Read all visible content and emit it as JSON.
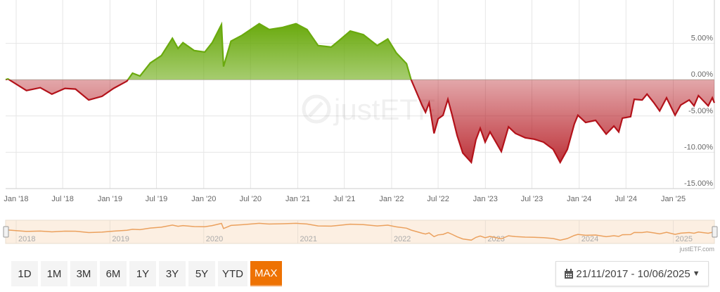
{
  "chart_data": {
    "type": "area",
    "start_date": "2017-11-21",
    "end_date": "2025-06-10",
    "ylim": [
      -15,
      10
    ],
    "y_ticks": [
      "5.00%",
      "0.00%",
      "-5.00%",
      "-10.00%",
      "-15.00%"
    ],
    "y_tick_values": [
      5,
      0,
      -5,
      -10,
      -15
    ],
    "x_ticks": [
      {
        "label": "Jan '18",
        "date": "2018-01-01"
      },
      {
        "label": "Jul '18",
        "date": "2018-07-01"
      },
      {
        "label": "Jan '19",
        "date": "2019-01-01"
      },
      {
        "label": "Jul '19",
        "date": "2019-07-01"
      },
      {
        "label": "Jan '20",
        "date": "2020-01-01"
      },
      {
        "label": "Jul '20",
        "date": "2020-07-01"
      },
      {
        "label": "Jan '21",
        "date": "2021-01-01"
      },
      {
        "label": "Jul '21",
        "date": "2021-07-01"
      },
      {
        "label": "Jan '22",
        "date": "2022-01-01"
      },
      {
        "label": "Jul '22",
        "date": "2022-07-01"
      },
      {
        "label": "Jan '23",
        "date": "2023-01-01"
      },
      {
        "label": "Jul '23",
        "date": "2023-07-01"
      },
      {
        "label": "Jan '24",
        "date": "2024-01-01"
      },
      {
        "label": "Jul '24",
        "date": "2024-07-01"
      },
      {
        "label": "Jan '25",
        "date": "2025-01-01"
      }
    ],
    "grid": true,
    "positive_color": "#6aaa0e",
    "negative_color": "#b3121a",
    "series": [
      {
        "points": [
          [
            "2017-11-21",
            0
          ],
          [
            "2017-11-30",
            0.1
          ],
          [
            "2018-02-10",
            -1.5
          ],
          [
            "2018-04-05",
            -1.1
          ],
          [
            "2018-05-20",
            -2.0
          ],
          [
            "2018-07-10",
            -1.2
          ],
          [
            "2018-08-20",
            -1.3
          ],
          [
            "2018-10-10",
            -2.8
          ],
          [
            "2018-12-01",
            -2.3
          ],
          [
            "2019-01-15",
            -1.2
          ],
          [
            "2019-03-08",
            -0.2
          ],
          [
            "2019-03-30",
            0.9
          ],
          [
            "2019-04-28",
            0.5
          ],
          [
            "2019-06-07",
            2.3
          ],
          [
            "2019-07-20",
            3.3
          ],
          [
            "2019-09-01",
            5.7
          ],
          [
            "2019-09-23",
            4.3
          ],
          [
            "2019-10-12",
            5.1
          ],
          [
            "2019-11-25",
            4.0
          ],
          [
            "2020-01-05",
            3.8
          ],
          [
            "2020-02-03",
            5.1
          ],
          [
            "2020-03-10",
            7.6
          ],
          [
            "2020-03-18",
            1.8
          ],
          [
            "2020-04-16",
            5.3
          ],
          [
            "2020-05-29",
            6.1
          ],
          [
            "2020-08-04",
            7.7
          ],
          [
            "2020-09-12",
            6.9
          ],
          [
            "2020-11-03",
            7.2
          ],
          [
            "2020-12-25",
            7.7
          ],
          [
            "2021-02-06",
            6.9
          ],
          [
            "2021-03-21",
            4.7
          ],
          [
            "2021-05-11",
            4.5
          ],
          [
            "2021-06-11",
            5.4
          ],
          [
            "2021-07-24",
            6.7
          ],
          [
            "2021-09-13",
            6.2
          ],
          [
            "2021-11-06",
            4.7
          ],
          [
            "2021-12-17",
            5.6
          ],
          [
            "2022-01-19",
            3.7
          ],
          [
            "2022-02-28",
            2.2
          ],
          [
            "2022-03-18",
            0
          ],
          [
            "2022-04-10",
            -1.9
          ],
          [
            "2022-04-29",
            -3.5
          ],
          [
            "2022-05-13",
            -4.5
          ],
          [
            "2022-05-27",
            -3.2
          ],
          [
            "2022-06-15",
            -7.4
          ],
          [
            "2022-07-01",
            -5.4
          ],
          [
            "2022-07-20",
            -4.9
          ],
          [
            "2022-08-08",
            -2.7
          ],
          [
            "2022-08-24",
            -4.8
          ],
          [
            "2022-09-13",
            -7.7
          ],
          [
            "2022-10-05",
            -10.1
          ],
          [
            "2022-11-07",
            -11.4
          ],
          [
            "2022-11-25",
            -8.3
          ],
          [
            "2022-12-12",
            -6.7
          ],
          [
            "2022-12-31",
            -8.6
          ],
          [
            "2023-01-19",
            -7.2
          ],
          [
            "2023-03-04",
            -9.9
          ],
          [
            "2023-04-01",
            -6.5
          ],
          [
            "2023-04-28",
            -7.4
          ],
          [
            "2023-06-05",
            -8.0
          ],
          [
            "2023-07-10",
            -8.2
          ],
          [
            "2023-08-15",
            -8.6
          ],
          [
            "2023-09-22",
            -9.6
          ],
          [
            "2023-10-19",
            -11.4
          ],
          [
            "2023-11-16",
            -9.6
          ],
          [
            "2023-12-13",
            -6.1
          ],
          [
            "2023-12-27",
            -4.9
          ],
          [
            "2024-01-26",
            -5.9
          ],
          [
            "2024-03-05",
            -5.6
          ],
          [
            "2024-04-15",
            -7.5
          ],
          [
            "2024-05-15",
            -6.4
          ],
          [
            "2024-06-03",
            -7.2
          ],
          [
            "2024-06-17",
            -5.3
          ],
          [
            "2024-07-19",
            -5.1
          ],
          [
            "2024-08-02",
            -2.7
          ],
          [
            "2024-09-02",
            -2.8
          ],
          [
            "2024-09-21",
            -2.0
          ],
          [
            "2024-10-18",
            -3.2
          ],
          [
            "2024-11-09",
            -4.3
          ],
          [
            "2024-12-06",
            -2.5
          ],
          [
            "2025-01-08",
            -4.9
          ],
          [
            "2025-01-30",
            -3.5
          ],
          [
            "2025-03-04",
            -2.8
          ],
          [
            "2025-03-23",
            -3.6
          ],
          [
            "2025-04-09",
            -2.2
          ],
          [
            "2025-05-17",
            -3.6
          ],
          [
            "2025-06-02",
            -2.5
          ],
          [
            "2025-06-10",
            -3.2
          ]
        ]
      }
    ]
  },
  "watermark": "justETF",
  "navigator": {
    "year_labels": [
      "2018",
      "2019",
      "2020",
      "2021",
      "2022",
      "2023",
      "2024",
      "2025"
    ],
    "credit": "justETF.com"
  },
  "range_buttons": [
    {
      "label": "1D"
    },
    {
      "label": "1M"
    },
    {
      "label": "3M"
    },
    {
      "label": "6M"
    },
    {
      "label": "1Y"
    },
    {
      "label": "3Y"
    },
    {
      "label": "5Y"
    },
    {
      "label": "YTD"
    },
    {
      "label": "MAX",
      "active": true
    }
  ],
  "date_range": {
    "icon": "calendar-icon",
    "label": "21/11/2017 - 10/06/2025",
    "caret": "caret-down-icon"
  }
}
